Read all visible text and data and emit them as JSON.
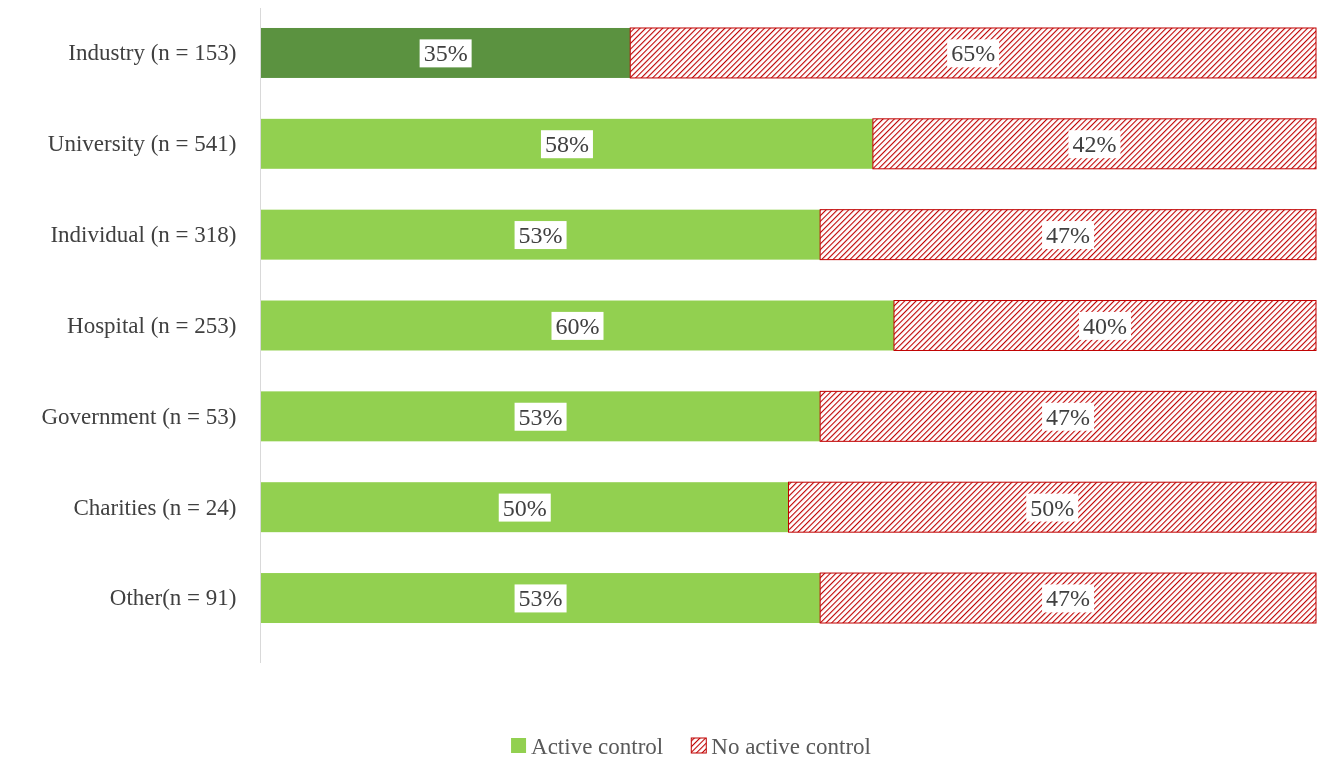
{
  "chart_data": {
    "type": "bar",
    "orientation": "horizontal",
    "stacked": true,
    "legend": "bottom",
    "categories": [
      "Industry (n = 153)",
      "University (n = 541)",
      "Individual (n = 318)",
      "Hospital (n = 253)",
      "Government (n = 53)",
      "Charities (n = 24)",
      "Other(n = 91)"
    ],
    "series": [
      {
        "name": "Active control",
        "color": "#92d050",
        "colors": [
          "#5b9240",
          "#92d050",
          "#92d050",
          "#92d050",
          "#92d050",
          "#92d050",
          "#92d050"
        ],
        "values": [
          35,
          58,
          53,
          60,
          53,
          50,
          53
        ],
        "value_labels": [
          "35%",
          "58%",
          "53%",
          "60%",
          "53%",
          "50%",
          "53%"
        ]
      },
      {
        "name": "No active control",
        "color": "#c00000",
        "values": [
          65,
          42,
          47,
          40,
          47,
          50,
          47
        ],
        "value_labels": [
          "65%",
          "42%",
          "47%",
          "40%",
          "47%",
          "50%",
          "47%"
        ]
      }
    ]
  }
}
